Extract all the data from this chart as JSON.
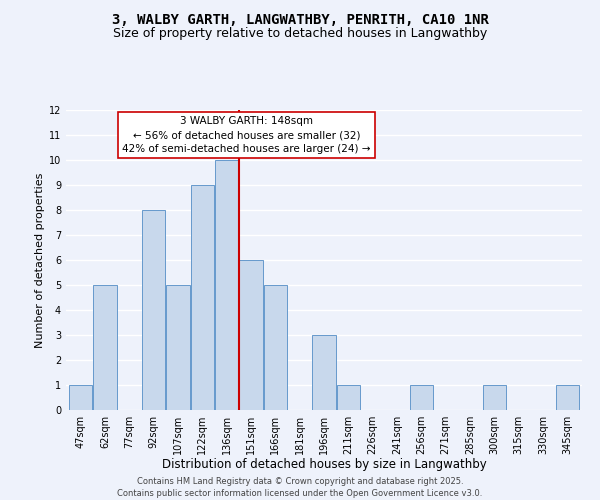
{
  "title": "3, WALBY GARTH, LANGWATHBY, PENRITH, CA10 1NR",
  "subtitle": "Size of property relative to detached houses in Langwathby",
  "xlabel": "Distribution of detached houses by size in Langwathby",
  "ylabel": "Number of detached properties",
  "bar_labels": [
    "47sqm",
    "62sqm",
    "77sqm",
    "92sqm",
    "107sqm",
    "122sqm",
    "136sqm",
    "151sqm",
    "166sqm",
    "181sqm",
    "196sqm",
    "211sqm",
    "226sqm",
    "241sqm",
    "256sqm",
    "271sqm",
    "285sqm",
    "300sqm",
    "315sqm",
    "330sqm",
    "345sqm"
  ],
  "bar_values": [
    1,
    5,
    0,
    8,
    5,
    9,
    10,
    6,
    5,
    0,
    3,
    1,
    0,
    0,
    1,
    0,
    0,
    1,
    0,
    0,
    1
  ],
  "bar_color": "#c8d8ec",
  "bar_edge_color": "#6699cc",
  "vline_index": 7,
  "vline_color": "#cc0000",
  "ylim": [
    0,
    12
  ],
  "yticks": [
    0,
    1,
    2,
    3,
    4,
    5,
    6,
    7,
    8,
    9,
    10,
    11,
    12
  ],
  "annotation_title": "3 WALBY GARTH: 148sqm",
  "annotation_line1": "← 56% of detached houses are smaller (32)",
  "annotation_line2": "42% of semi-detached houses are larger (24) →",
  "footnote1": "Contains HM Land Registry data © Crown copyright and database right 2025.",
  "footnote2": "Contains public sector information licensed under the Open Government Licence v3.0.",
  "background_color": "#eef2fb",
  "grid_color": "#ffffff",
  "title_fontsize": 10,
  "subtitle_fontsize": 9,
  "xlabel_fontsize": 8.5,
  "ylabel_fontsize": 8,
  "tick_fontsize": 7,
  "footnote_fontsize": 6,
  "ann_fontsize": 7.5
}
